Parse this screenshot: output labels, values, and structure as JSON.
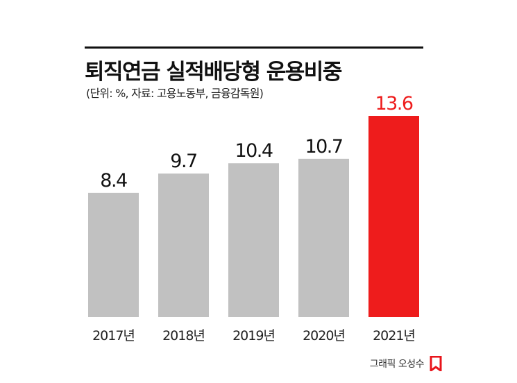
{
  "chart_data": {
    "type": "bar",
    "title": "퇴직연금 실적배당형 운용비중",
    "subtitle": "(단위: %, 자료: 고용노동부, 금융감독원)",
    "categories": [
      "2017년",
      "2018년",
      "2019년",
      "2020년",
      "2021년"
    ],
    "values": [
      8.4,
      9.7,
      10.4,
      10.7,
      13.6
    ],
    "value_labels": [
      "8.4",
      "9.7",
      "10.4",
      "10.7",
      "13.6"
    ],
    "bar_colors": [
      "#c1c1c1",
      "#c1c1c1",
      "#c1c1c1",
      "#c1c1c1",
      "#ee1c1c"
    ],
    "highlight_label_color": "#ee1c1c",
    "label_color": "#111111",
    "ylim": [
      0,
      13.6
    ],
    "grid": false,
    "legend": "none"
  },
  "credit": {
    "text": "그래픽 오성수",
    "icon": "newspaper-logo-icon",
    "icon_color": "#e8141b"
  }
}
